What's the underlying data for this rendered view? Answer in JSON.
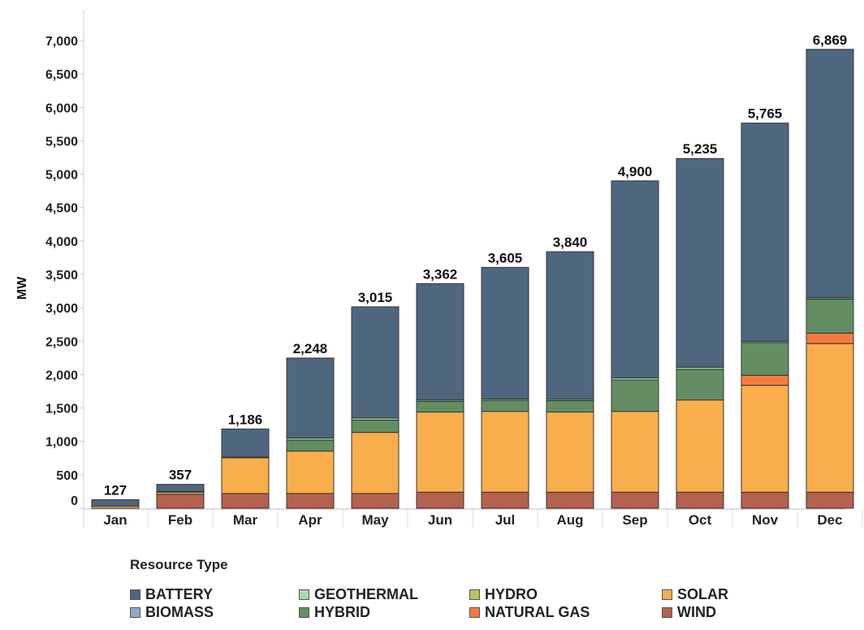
{
  "chart_data": {
    "type": "bar",
    "stacked": true,
    "title": "",
    "xlabel": "",
    "ylabel": "MW",
    "ylim": [
      0,
      7000
    ],
    "ytick_step": 500,
    "yticks": [
      "0",
      "500",
      "1,000",
      "1,500",
      "2,000",
      "2,500",
      "3,000",
      "3,500",
      "4,000",
      "4,500",
      "5,000",
      "5,500",
      "6,000",
      "6,500",
      "7,000"
    ],
    "categories": [
      "Jan",
      "Feb",
      "Mar",
      "Apr",
      "May",
      "Jun",
      "Jul",
      "Aug",
      "Sep",
      "Oct",
      "Nov",
      "Dec"
    ],
    "totals": [
      "127",
      "357",
      "1,186",
      "2,248",
      "3,015",
      "3,362",
      "3,605",
      "3,840",
      "4,900",
      "5,235",
      "5,765",
      "6,869"
    ],
    "legend_title": "Resource Type",
    "legend_placement": "bottom",
    "legend_order": [
      "BATTERY",
      "GEOTHERMAL",
      "HYDRO",
      "SOLAR",
      "BIOMASS",
      "HYBRID",
      "NATURAL GAS",
      "WIND"
    ],
    "series": [
      {
        "name": "WIND",
        "color": "#b5614f",
        "values": [
          0,
          210,
          220,
          220,
          220,
          240,
          240,
          240,
          240,
          240,
          240,
          240
        ]
      },
      {
        "name": "SOLAR",
        "color": "#f9ae4b",
        "values": [
          30,
          30,
          536,
          635,
          915,
          1200,
          1210,
          1200,
          1210,
          1380,
          1600,
          2225
        ]
      },
      {
        "name": "NATURAL GAS",
        "color": "#f47b3f",
        "values": [
          0,
          0,
          0,
          0,
          0,
          0,
          0,
          0,
          0,
          0,
          150,
          155
        ]
      },
      {
        "name": "HYDRO",
        "color": "#b8c452",
        "values": [
          0,
          10,
          0,
          0,
          0,
          0,
          0,
          0,
          0,
          0,
          0,
          0
        ]
      },
      {
        "name": "HYBRID",
        "color": "#638e63",
        "values": [
          0,
          0,
          10,
          165,
          185,
          160,
          165,
          170,
          470,
          460,
          490,
          510
        ]
      },
      {
        "name": "GEOTHERMAL",
        "color": "#a7d8ac",
        "values": [
          0,
          0,
          0,
          30,
          30,
          20,
          20,
          20,
          30,
          30,
          20,
          20
        ]
      },
      {
        "name": "BIOMASS",
        "color": "#8eaac4",
        "values": [
          0,
          0,
          0,
          0,
          0,
          0,
          0,
          0,
          0,
          0,
          0,
          0
        ]
      },
      {
        "name": "BATTERY",
        "color": "#4f667f",
        "values": [
          97,
          107,
          420,
          1198,
          1665,
          1742,
          1970,
          2210,
          2950,
          3125,
          3265,
          3719
        ]
      }
    ]
  }
}
